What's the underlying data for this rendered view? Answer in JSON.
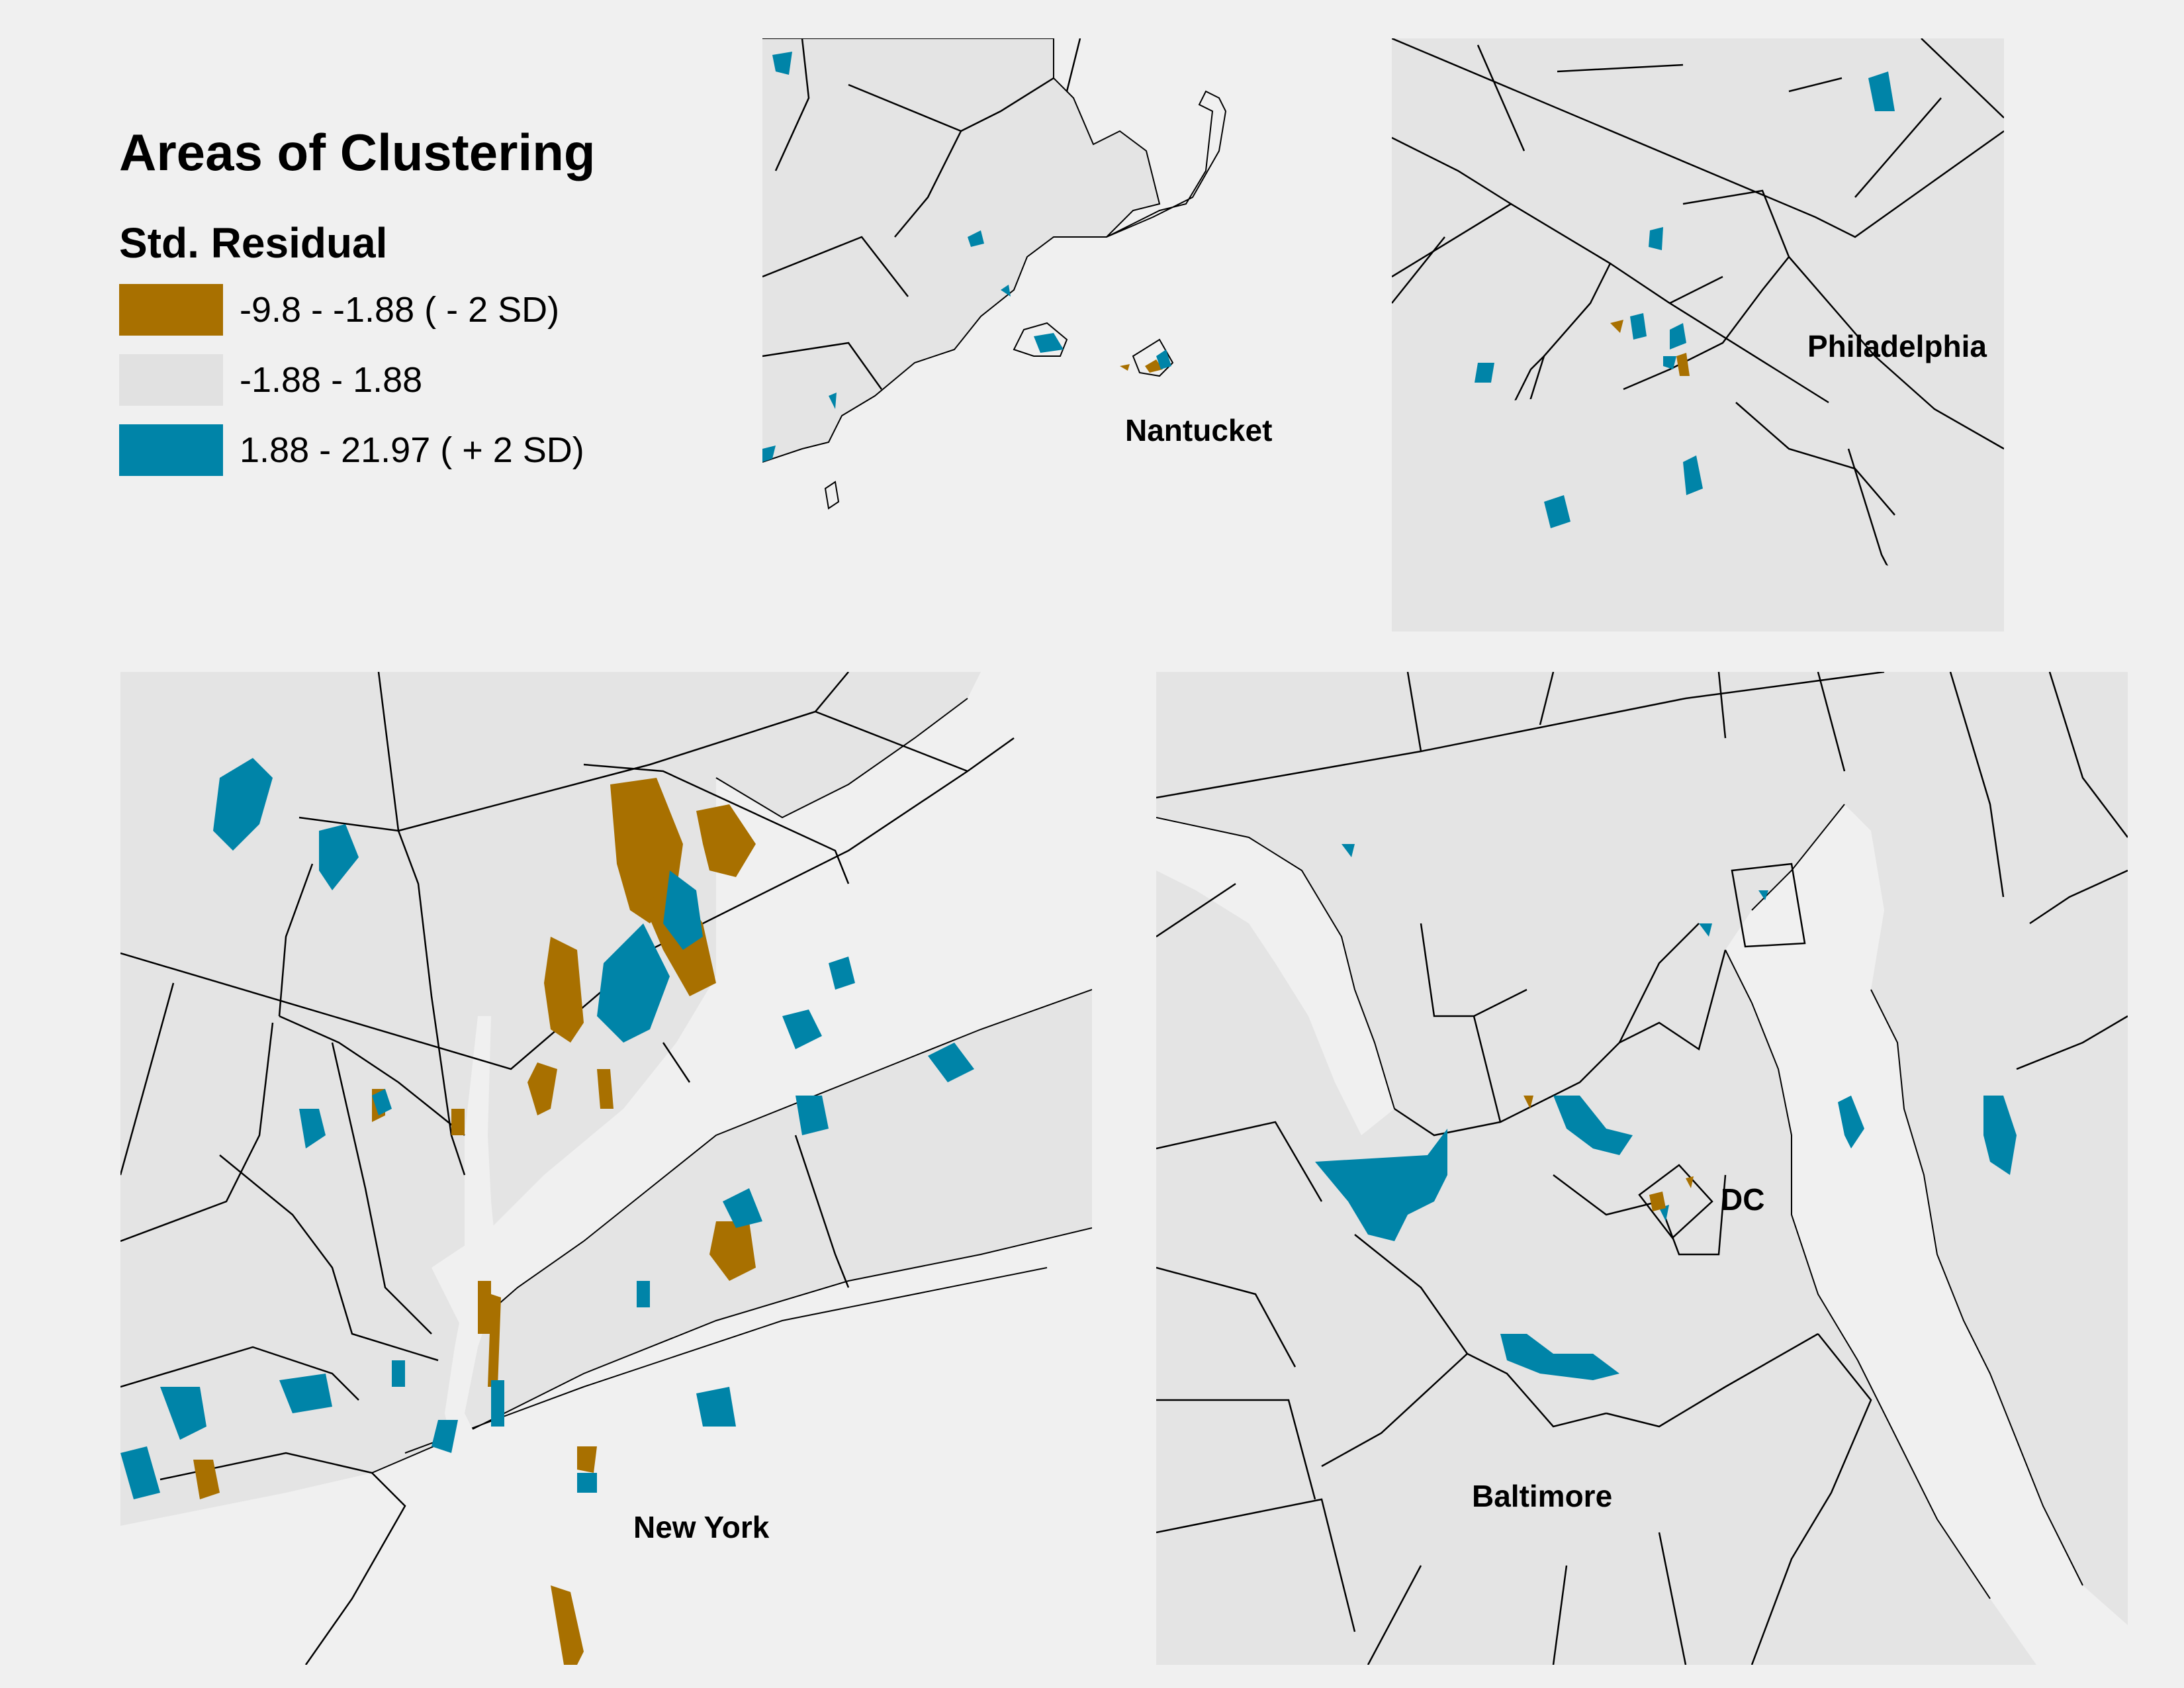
{
  "legend": {
    "title": "Areas of Clustering",
    "subtitle": "Std. Residual",
    "items": [
      {
        "label": "-9.8 - -1.88 ( - 2 SD)",
        "color": "#a87000"
      },
      {
        "label": "-1.88 - 1.88",
        "color": "#e1e1e1"
      },
      {
        "label": "1.88 - 21.97 ( + 2 SD)",
        "color": "#0084a8"
      }
    ]
  },
  "maps": {
    "nantucket": {
      "label": "Nantucket"
    },
    "philadelphia": {
      "label": "Philadelphia"
    },
    "new_york": {
      "label": "New York"
    },
    "baltimore": {
      "label": "Baltimore"
    },
    "dc": {
      "label": "DC"
    }
  },
  "colors": {
    "low_cluster": "#a87000",
    "neutral": "#e1e1e1",
    "high_cluster": "#0084a8",
    "water": "#f0f0f0",
    "boundary": "#000000"
  }
}
